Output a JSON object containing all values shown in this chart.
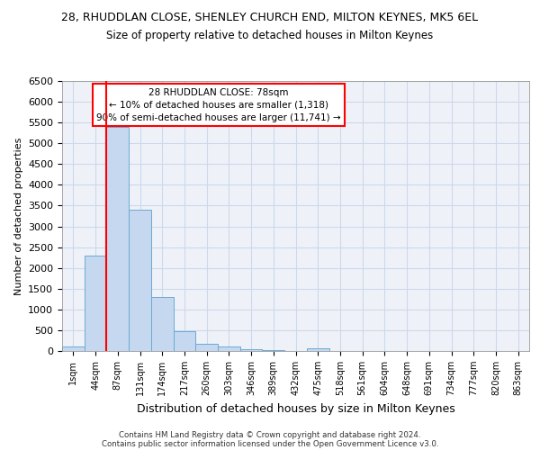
{
  "title1": "28, RHUDDLAN CLOSE, SHENLEY CHURCH END, MILTON KEYNES, MK5 6EL",
  "title2": "Size of property relative to detached houses in Milton Keynes",
  "xlabel": "Distribution of detached houses by size in Milton Keynes",
  "ylabel": "Number of detached properties",
  "bin_labels": [
    "1sqm",
    "44sqm",
    "87sqm",
    "131sqm",
    "174sqm",
    "217sqm",
    "260sqm",
    "303sqm",
    "346sqm",
    "389sqm",
    "432sqm",
    "475sqm",
    "518sqm",
    "561sqm",
    "604sqm",
    "648sqm",
    "691sqm",
    "734sqm",
    "777sqm",
    "820sqm",
    "863sqm"
  ],
  "bar_values": [
    100,
    2300,
    5400,
    3400,
    1300,
    470,
    175,
    100,
    50,
    15,
    5,
    75,
    0,
    0,
    0,
    0,
    0,
    0,
    0,
    0,
    0
  ],
  "bar_color": "#c5d8ef",
  "bar_edge_color": "#6aaad4",
  "annotation_text": "28 RHUDDLAN CLOSE: 78sqm\n← 10% of detached houses are smaller (1,318)\n90% of semi-detached houses are larger (11,741) →",
  "ylim": [
    0,
    6500
  ],
  "yticks": [
    0,
    500,
    1000,
    1500,
    2000,
    2500,
    3000,
    3500,
    4000,
    4500,
    5000,
    5500,
    6000,
    6500
  ],
  "footer1": "Contains HM Land Registry data © Crown copyright and database right 2024.",
  "footer2": "Contains public sector information licensed under the Open Government Licence v3.0.",
  "grid_color": "#cdd8ea",
  "background_color": "#eef2f8"
}
